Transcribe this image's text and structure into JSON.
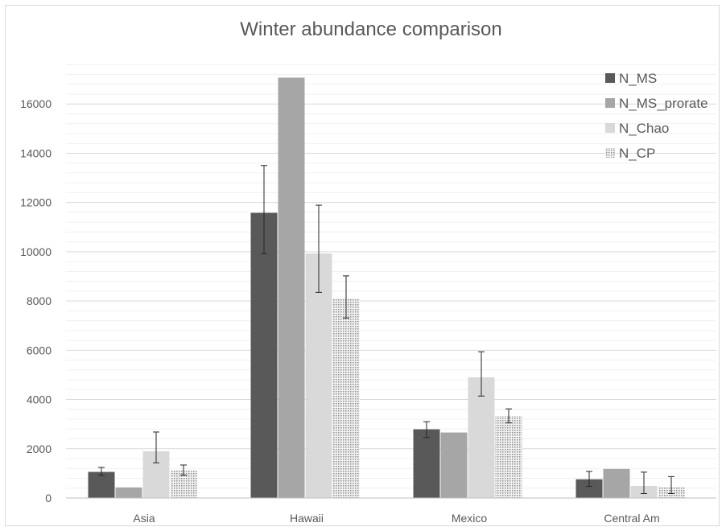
{
  "chart_data": {
    "type": "bar",
    "title": "Winter abundance comparison",
    "xlabel": "",
    "ylabel": "",
    "categories": [
      "Asia",
      "Hawaii",
      "Mexico",
      "Central Am"
    ],
    "ylim": [
      0,
      18000
    ],
    "yticks": [
      0,
      2000,
      4000,
      6000,
      8000,
      10000,
      12000,
      14000,
      16000
    ],
    "y_tick_labels": [
      "0",
      "2000",
      "4000",
      "6000",
      "8000",
      "10000",
      "12000",
      "14000",
      "16000"
    ],
    "grid": true,
    "legend_position": "top-right",
    "series": [
      {
        "name": "N_MS",
        "color": "#595959",
        "pattern": "solid",
        "values": [
          1060,
          11580,
          2790,
          760
        ],
        "error_low": [
          920,
          9920,
          2460,
          470
        ],
        "error_high": [
          1240,
          13500,
          3100,
          1080
        ]
      },
      {
        "name": "N_MS_prorate",
        "color": "#a6a6a6",
        "pattern": "solid",
        "values": [
          430,
          17070,
          2660,
          1180
        ],
        "error_low": null,
        "error_high": null
      },
      {
        "name": "N_Chao",
        "color": "#d9d9d9",
        "pattern": "solid",
        "values": [
          1900,
          9930,
          4900,
          490
        ],
        "error_low": [
          1430,
          8350,
          4140,
          180
        ],
        "error_high": [
          2680,
          11890,
          5940,
          1050
        ]
      },
      {
        "name": "N_CP",
        "color": "#d0d0d0",
        "pattern": "dotted",
        "values": [
          1130,
          8110,
          3330,
          450
        ],
        "error_low": [
          930,
          7310,
          3050,
          180
        ],
        "error_high": [
          1340,
          9020,
          3620,
          870
        ]
      }
    ]
  }
}
